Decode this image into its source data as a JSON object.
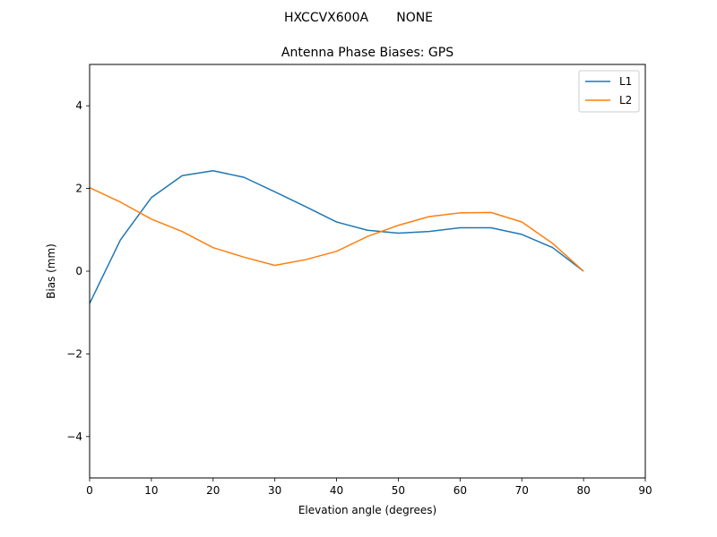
{
  "suptitle": "HXCCVX600A       NONE",
  "chart_data": {
    "type": "line",
    "title": "Antenna Phase Biases: GPS",
    "xlabel": "Elevation angle (degrees)",
    "ylabel": "Bias (mm)",
    "xlim": [
      0,
      90
    ],
    "ylim": [
      -5,
      5
    ],
    "xticks": [
      "0",
      "10",
      "20",
      "30",
      "40",
      "50",
      "60",
      "70",
      "80",
      "90"
    ],
    "yticks": [
      "−4",
      "−2",
      "0",
      "2",
      "4"
    ],
    "ytick_values": [
      -4,
      -2,
      0,
      2,
      4
    ],
    "xtick_values": [
      0,
      10,
      20,
      30,
      40,
      50,
      60,
      70,
      80,
      90
    ],
    "grid": false,
    "legend_position": "top-right",
    "x": [
      0,
      5,
      10,
      15,
      20,
      25,
      30,
      35,
      40,
      45,
      50,
      55,
      60,
      65,
      70,
      75,
      80
    ],
    "series": [
      {
        "name": "L1",
        "color": "#1f77b4",
        "values": [
          -0.78,
          0.76,
          1.78,
          2.31,
          2.43,
          2.27,
          1.92,
          1.56,
          1.19,
          0.99,
          0.92,
          0.96,
          1.05,
          1.05,
          0.89,
          0.57,
          0.0
        ]
      },
      {
        "name": "L2",
        "color": "#ff7f0e",
        "values": [
          2.02,
          1.67,
          1.26,
          0.96,
          0.57,
          0.34,
          0.14,
          0.28,
          0.48,
          0.84,
          1.11,
          1.32,
          1.41,
          1.42,
          1.19,
          0.67,
          0.0
        ]
      }
    ]
  }
}
